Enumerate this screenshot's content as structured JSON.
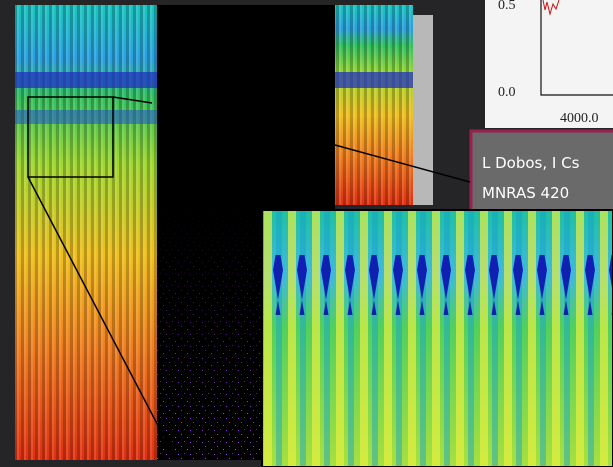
{
  "plot": {
    "y_labels": [
      "0.5",
      "0.0"
    ],
    "x_labels": [
      "4000.0"
    ]
  },
  "citation": {
    "lines": [
      "L Dobos, I Cs",
      "MNRAS 420"
    ]
  }
}
